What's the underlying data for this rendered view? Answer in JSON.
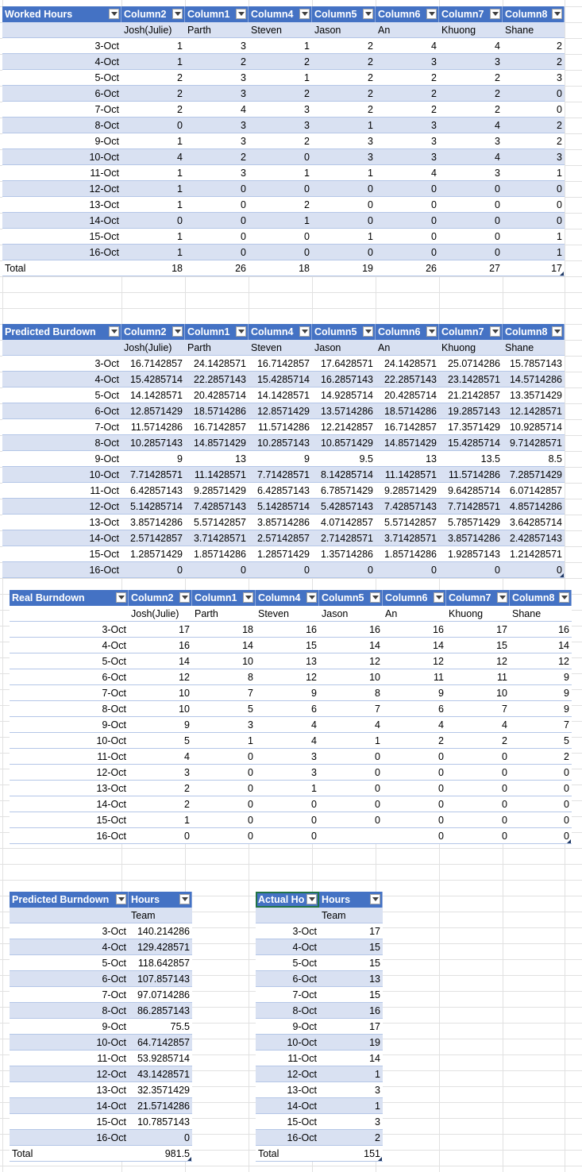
{
  "worked_hours": {
    "headers": [
      "Worked Hours",
      "Column2",
      "Column1",
      "Column4",
      "Column5",
      "Column6",
      "Column7",
      "Column8"
    ],
    "names": [
      "",
      "Josh(Julie)",
      "Parth",
      "Steven",
      "Jason",
      "An",
      "Khuong",
      "Shane"
    ],
    "rows": [
      [
        "3-Oct",
        "1",
        "3",
        "1",
        "2",
        "4",
        "4",
        "2"
      ],
      [
        "4-Oct",
        "1",
        "2",
        "2",
        "2",
        "3",
        "3",
        "2"
      ],
      [
        "5-Oct",
        "2",
        "3",
        "1",
        "2",
        "2",
        "2",
        "3"
      ],
      [
        "6-Oct",
        "2",
        "3",
        "2",
        "2",
        "2",
        "2",
        "0"
      ],
      [
        "7-Oct",
        "2",
        "4",
        "3",
        "2",
        "2",
        "2",
        "0"
      ],
      [
        "8-Oct",
        "0",
        "3",
        "3",
        "1",
        "3",
        "4",
        "2"
      ],
      [
        "9-Oct",
        "1",
        "3",
        "2",
        "3",
        "3",
        "3",
        "2"
      ],
      [
        "10-Oct",
        "4",
        "2",
        "0",
        "3",
        "3",
        "4",
        "3"
      ],
      [
        "11-Oct",
        "1",
        "3",
        "1",
        "1",
        "4",
        "3",
        "1"
      ],
      [
        "12-Oct",
        "1",
        "0",
        "0",
        "0",
        "0",
        "0",
        "0"
      ],
      [
        "13-Oct",
        "1",
        "0",
        "2",
        "0",
        "0",
        "0",
        "0"
      ],
      [
        "14-Oct",
        "0",
        "0",
        "1",
        "0",
        "0",
        "0",
        "0"
      ],
      [
        "15-Oct",
        "1",
        "0",
        "0",
        "1",
        "0",
        "0",
        "1"
      ],
      [
        "16-Oct",
        "1",
        "0",
        "0",
        "0",
        "0",
        "0",
        "1"
      ]
    ],
    "total": [
      "Total",
      "18",
      "26",
      "18",
      "19",
      "26",
      "27",
      "17"
    ]
  },
  "predicted_burndown": {
    "headers": [
      "Predicted Burdown",
      "Column2",
      "Column1",
      "Column4",
      "Column5",
      "Column6",
      "Column7",
      "Column8"
    ],
    "names": [
      "",
      "Josh(Julie)",
      "Parth",
      "Steven",
      "Jason",
      "An",
      "Khuong",
      "Shane"
    ],
    "rows": [
      [
        "3-Oct",
        "16.7142857",
        "24.1428571",
        "16.7142857",
        "17.6428571",
        "24.1428571",
        "25.0714286",
        "15.7857143"
      ],
      [
        "4-Oct",
        "15.4285714",
        "22.2857143",
        "15.4285714",
        "16.2857143",
        "22.2857143",
        "23.1428571",
        "14.5714286"
      ],
      [
        "5-Oct",
        "14.1428571",
        "20.4285714",
        "14.1428571",
        "14.9285714",
        "20.4285714",
        "21.2142857",
        "13.3571429"
      ],
      [
        "6-Oct",
        "12.8571429",
        "18.5714286",
        "12.8571429",
        "13.5714286",
        "18.5714286",
        "19.2857143",
        "12.1428571"
      ],
      [
        "7-Oct",
        "11.5714286",
        "16.7142857",
        "11.5714286",
        "12.2142857",
        "16.7142857",
        "17.3571429",
        "10.9285714"
      ],
      [
        "8-Oct",
        "10.2857143",
        "14.8571429",
        "10.2857143",
        "10.8571429",
        "14.8571429",
        "15.4285714",
        "9.71428571"
      ],
      [
        "9-Oct",
        "9",
        "13",
        "9",
        "9.5",
        "13",
        "13.5",
        "8.5"
      ],
      [
        "10-Oct",
        "7.71428571",
        "11.1428571",
        "7.71428571",
        "8.14285714",
        "11.1428571",
        "11.5714286",
        "7.28571429"
      ],
      [
        "11-Oct",
        "6.42857143",
        "9.28571429",
        "6.42857143",
        "6.78571429",
        "9.28571429",
        "9.64285714",
        "6.07142857"
      ],
      [
        "12-Oct",
        "5.14285714",
        "7.42857143",
        "5.14285714",
        "5.42857143",
        "7.42857143",
        "7.71428571",
        "4.85714286"
      ],
      [
        "13-Oct",
        "3.85714286",
        "5.57142857",
        "3.85714286",
        "4.07142857",
        "5.57142857",
        "5.78571429",
        "3.64285714"
      ],
      [
        "14-Oct",
        "2.57142857",
        "3.71428571",
        "2.57142857",
        "2.71428571",
        "3.71428571",
        "3.85714286",
        "2.42857143"
      ],
      [
        "15-Oct",
        "1.28571429",
        "1.85714286",
        "1.28571429",
        "1.35714286",
        "1.85714286",
        "1.92857143",
        "1.21428571"
      ],
      [
        "16-Oct",
        "0",
        "0",
        "0",
        "0",
        "0",
        "0",
        "0"
      ]
    ]
  },
  "real_burndown": {
    "headers": [
      "Real Burndown",
      "Column2",
      "Column1",
      "Column4",
      "Column5",
      "Column6",
      "Column7",
      "Column8"
    ],
    "names": [
      "",
      "Josh(Julie)",
      "Parth",
      "Steven",
      "Jason",
      "An",
      "Khuong",
      "Shane"
    ],
    "rows": [
      [
        "3-Oct",
        "17",
        "18",
        "16",
        "16",
        "16",
        "17",
        "16"
      ],
      [
        "4-Oct",
        "16",
        "14",
        "15",
        "14",
        "14",
        "15",
        "14"
      ],
      [
        "5-Oct",
        "14",
        "10",
        "13",
        "12",
        "12",
        "12",
        "12"
      ],
      [
        "6-Oct",
        "12",
        "8",
        "12",
        "10",
        "11",
        "11",
        "9"
      ],
      [
        "7-Oct",
        "10",
        "7",
        "9",
        "8",
        "9",
        "10",
        "9"
      ],
      [
        "8-Oct",
        "10",
        "5",
        "6",
        "7",
        "6",
        "7",
        "9"
      ],
      [
        "9-Oct",
        "9",
        "3",
        "4",
        "4",
        "4",
        "4",
        "7"
      ],
      [
        "10-Oct",
        "5",
        "1",
        "4",
        "1",
        "2",
        "2",
        "5"
      ],
      [
        "11-Oct",
        "4",
        "0",
        "3",
        "0",
        "0",
        "0",
        "2"
      ],
      [
        "12-Oct",
        "3",
        "0",
        "3",
        "0",
        "0",
        "0",
        "0"
      ],
      [
        "13-Oct",
        "2",
        "0",
        "1",
        "0",
        "0",
        "0",
        "0"
      ],
      [
        "14-Oct",
        "2",
        "0",
        "0",
        "0",
        "0",
        "0",
        "0"
      ],
      [
        "15-Oct",
        "1",
        "0",
        "0",
        "0",
        "0",
        "0",
        "0"
      ],
      [
        "16-Oct",
        "0",
        "0",
        "0",
        "",
        "0",
        "0",
        "0"
      ]
    ]
  },
  "team_predicted": {
    "headers": [
      "Predicted Burndown",
      "Hours"
    ],
    "sub": [
      "",
      "Team"
    ],
    "rows": [
      [
        "3-Oct",
        "140.214286"
      ],
      [
        "4-Oct",
        "129.428571"
      ],
      [
        "5-Oct",
        "118.642857"
      ],
      [
        "6-Oct",
        "107.857143"
      ],
      [
        "7-Oct",
        "97.0714286"
      ],
      [
        "8-Oct",
        "86.2857143"
      ],
      [
        "9-Oct",
        "75.5"
      ],
      [
        "10-Oct",
        "64.7142857"
      ],
      [
        "11-Oct",
        "53.9285714"
      ],
      [
        "12-Oct",
        "43.1428571"
      ],
      [
        "13-Oct",
        "32.3571429"
      ],
      [
        "14-Oct",
        "21.5714286"
      ],
      [
        "15-Oct",
        "10.7857143"
      ],
      [
        "16-Oct",
        "0"
      ]
    ],
    "total": [
      "Total",
      "981.5"
    ]
  },
  "team_actual": {
    "headers": [
      "Actual Ho",
      "Hours"
    ],
    "sub": [
      "",
      "Team"
    ],
    "rows": [
      [
        "3-Oct",
        "17"
      ],
      [
        "4-Oct",
        "15"
      ],
      [
        "5-Oct",
        "15"
      ],
      [
        "6-Oct",
        "13"
      ],
      [
        "7-Oct",
        "15"
      ],
      [
        "8-Oct",
        "16"
      ],
      [
        "9-Oct",
        "17"
      ],
      [
        "10-Oct",
        "19"
      ],
      [
        "11-Oct",
        "14"
      ],
      [
        "12-Oct",
        "1"
      ],
      [
        "13-Oct",
        "3"
      ],
      [
        "14-Oct",
        "1"
      ],
      [
        "15-Oct",
        "3"
      ],
      [
        "16-Oct",
        "2"
      ]
    ],
    "total": [
      "Total",
      "151"
    ]
  }
}
